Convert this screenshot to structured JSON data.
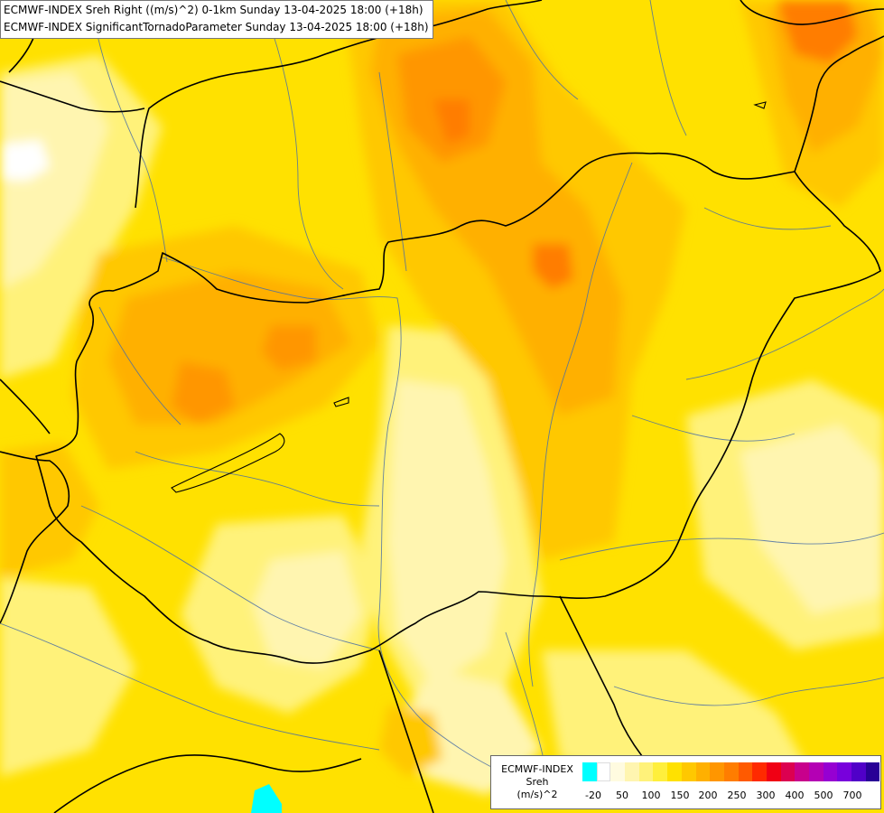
{
  "header": {
    "line1": "ECMWF-INDEX Sreh Right ((m/s)^2) 0-1km Sunday 13-04-2025 18:00 (+18h)",
    "line2": "ECMWF-INDEX SignificantTornadoParameter Sunday 13-04-2025 18:00 (+18h)"
  },
  "legend": {
    "model": "ECMWF-INDEX",
    "parameter": "Sreh",
    "unit": "(m/s)^2",
    "colors": [
      "#00ffff",
      "#ffffff",
      "#fffbe0",
      "#fff5b0",
      "#fff27a",
      "#ffef3c",
      "#ffe100",
      "#ffc800",
      "#ffb000",
      "#ff9600",
      "#ff7d00",
      "#ff5a00",
      "#ff2a00",
      "#f00014",
      "#dc0050",
      "#c8008c",
      "#b400b4",
      "#9600d2",
      "#7800dc",
      "#5000c8",
      "#280096"
    ],
    "ticks": [
      "-20",
      "50",
      "100",
      "150",
      "200",
      "250",
      "300",
      "400",
      "500",
      "700"
    ]
  },
  "map": {
    "base_color": "#ffe100",
    "border_color": "#000000",
    "river_color": "#4a6fa5"
  }
}
